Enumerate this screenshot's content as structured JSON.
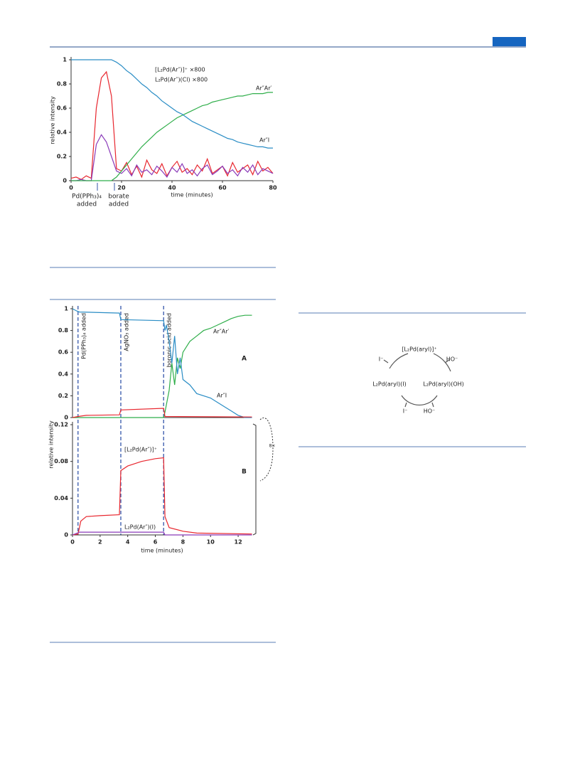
{
  "chart_data": [
    {
      "type": "line",
      "xlabel": "time (minutes)",
      "ylabel": "relative intensity",
      "xlim": [
        0,
        80
      ],
      "ylim": [
        0,
        1
      ],
      "xticks": [
        0,
        20,
        40,
        60,
        80
      ],
      "yticks": [
        0,
        0.2,
        0.4,
        0.6,
        0.8,
        1
      ],
      "x": [
        0,
        2,
        4,
        6,
        8,
        10,
        12,
        14,
        16,
        18,
        20,
        22,
        24,
        26,
        28,
        30,
        32,
        34,
        36,
        38,
        40,
        42,
        44,
        46,
        48,
        50,
        52,
        54,
        56,
        58,
        60,
        62,
        64,
        66,
        68,
        70,
        72,
        74,
        76,
        78,
        80
      ],
      "series": [
        {
          "name": "[L₂Pd(Ar″)]⁺ ×800",
          "color": "#e8262e",
          "values": [
            0.02,
            0.03,
            0.01,
            0.04,
            0.02,
            0.6,
            0.85,
            0.9,
            0.7,
            0.1,
            0.08,
            0.15,
            0.05,
            0.12,
            0.03,
            0.17,
            0.09,
            0.06,
            0.14,
            0.04,
            0.11,
            0.16,
            0.07,
            0.1,
            0.05,
            0.13,
            0.08,
            0.18,
            0.06,
            0.09,
            0.12,
            0.04,
            0.15,
            0.07,
            0.1,
            0.13,
            0.05,
            0.16,
            0.08,
            0.11,
            0.06
          ]
        },
        {
          "name": "L₂Pd(Ar″)(Cl) ×800",
          "color": "#8a3ab9",
          "values": [
            0,
            0,
            0.01,
            0,
            0,
            0.3,
            0.38,
            0.32,
            0.2,
            0.08,
            0.06,
            0.1,
            0.04,
            0.13,
            0.07,
            0.09,
            0.05,
            0.12,
            0.08,
            0.03,
            0.11,
            0.07,
            0.14,
            0.06,
            0.09,
            0.04,
            0.1,
            0.13,
            0.05,
            0.08,
            0.12,
            0.06,
            0.09,
            0.04,
            0.11,
            0.07,
            0.13,
            0.05,
            0.1,
            0.08,
            0.06
          ]
        },
        {
          "name": "Ar″Ar′",
          "color": "#2fae4a",
          "values": [
            0,
            0,
            0,
            0,
            0,
            0,
            0,
            0,
            0,
            0.03,
            0.08,
            0.13,
            0.18,
            0.23,
            0.28,
            0.32,
            0.36,
            0.4,
            0.43,
            0.46,
            0.49,
            0.52,
            0.54,
            0.56,
            0.58,
            0.6,
            0.62,
            0.63,
            0.65,
            0.66,
            0.67,
            0.68,
            0.69,
            0.7,
            0.7,
            0.71,
            0.72,
            0.72,
            0.72,
            0.73,
            0.73
          ]
        },
        {
          "name": "Ar″I",
          "color": "#2a8dc5",
          "values": [
            1,
            1,
            1,
            1,
            1,
            1,
            1,
            1,
            1,
            0.98,
            0.95,
            0.91,
            0.88,
            0.84,
            0.8,
            0.77,
            0.73,
            0.7,
            0.66,
            0.63,
            0.6,
            0.57,
            0.55,
            0.52,
            0.49,
            0.47,
            0.45,
            0.43,
            0.41,
            0.39,
            0.37,
            0.35,
            0.34,
            0.32,
            0.31,
            0.3,
            0.29,
            0.28,
            0.28,
            0.27,
            0.27
          ]
        }
      ],
      "annotations": [
        [
          "Pd(PPh₃)₄",
          "added"
        ],
        [
          "borate",
          "added"
        ]
      ]
    },
    {
      "type": "line",
      "panel": "A",
      "xlim": [
        0,
        13
      ],
      "ylim": [
        0,
        1
      ],
      "yticks": [
        0,
        0.2,
        0.4,
        0.6,
        0.8,
        1
      ],
      "events": [
        {
          "x": 0.4,
          "label": "Pd(PPh₃)₄ added"
        },
        {
          "x": 3.5,
          "label": "AgNO₃ added"
        },
        {
          "x": 6.6,
          "label": "boronic acid added"
        }
      ],
      "series": [
        {
          "name": "Ar″Ar′",
          "color": "#2fae4a",
          "x": [
            0,
            6.6,
            6.7,
            7,
            7.2,
            7.4,
            7.6,
            7.8,
            8,
            8.5,
            9,
            9.5,
            10,
            10.5,
            11,
            11.5,
            12,
            12.5,
            13
          ],
          "values": [
            0,
            0,
            0.05,
            0.25,
            0.5,
            0.3,
            0.55,
            0.45,
            0.6,
            0.7,
            0.75,
            0.8,
            0.82,
            0.85,
            0.88,
            0.91,
            0.93,
            0.94,
            0.94
          ]
        },
        {
          "name": "Ar″I",
          "color": "#2a8dc5",
          "x": [
            0,
            0.3,
            0.5,
            3.4,
            3.5,
            6.6,
            6.7,
            6.8,
            7,
            7.2,
            7.4,
            7.6,
            7.8,
            8,
            8.5,
            9,
            10,
            10.5,
            11,
            11.5,
            12,
            12.5,
            13
          ],
          "values": [
            1,
            0.98,
            0.97,
            0.96,
            0.9,
            0.89,
            0.8,
            0.85,
            0.7,
            0.5,
            0.75,
            0.4,
            0.55,
            0.35,
            0.3,
            0.22,
            0.18,
            0.14,
            0.1,
            0.06,
            0.02,
            0,
            0
          ]
        },
        {
          "color": "#e8262e",
          "x": [
            0,
            0.4,
            1,
            3.4,
            3.5,
            6.6,
            6.7,
            13
          ],
          "values": [
            0,
            0.01,
            0.02,
            0.025,
            0.07,
            0.085,
            0.01,
            0.005
          ]
        }
      ]
    },
    {
      "type": "line",
      "panel": "B",
      "xlabel": "time (minutes)",
      "ylabel": "relative intensity",
      "xlim": [
        0,
        13
      ],
      "ylim": [
        0,
        0.12
      ],
      "xticks": [
        0,
        2,
        4,
        6,
        8,
        10,
        12
      ],
      "yticks": [
        0,
        0.04,
        0.08,
        0.12
      ],
      "series": [
        {
          "name": "[L₂Pd(Ar″)]⁺",
          "color": "#e8262e",
          "x": [
            0,
            0.4,
            0.6,
            1,
            2,
            3.4,
            3.5,
            4,
            5,
            6,
            6.6,
            6.7,
            7,
            8,
            9,
            13
          ],
          "values": [
            0,
            0.001,
            0.015,
            0.02,
            0.021,
            0.022,
            0.07,
            0.075,
            0.08,
            0.083,
            0.084,
            0.02,
            0.008,
            0.004,
            0.002,
            0.001
          ]
        },
        {
          "name": "L₂Pd(Ar″)(I)",
          "color": "#8a3ab9",
          "x": [
            0,
            0.5,
            6.6,
            6.7,
            13
          ],
          "values": [
            0,
            0.003,
            0.003,
            0,
            0
          ]
        }
      ],
      "annotations": [
        "8×"
      ]
    }
  ],
  "diagram": {
    "labels": [
      "[L₂Pd(aryl)]⁺",
      "HO⁻",
      "I⁻",
      "L₂Pd(aryl)(I)",
      "L₂Pd(aryl)(OH)",
      "I⁻",
      "HO⁻"
    ]
  }
}
